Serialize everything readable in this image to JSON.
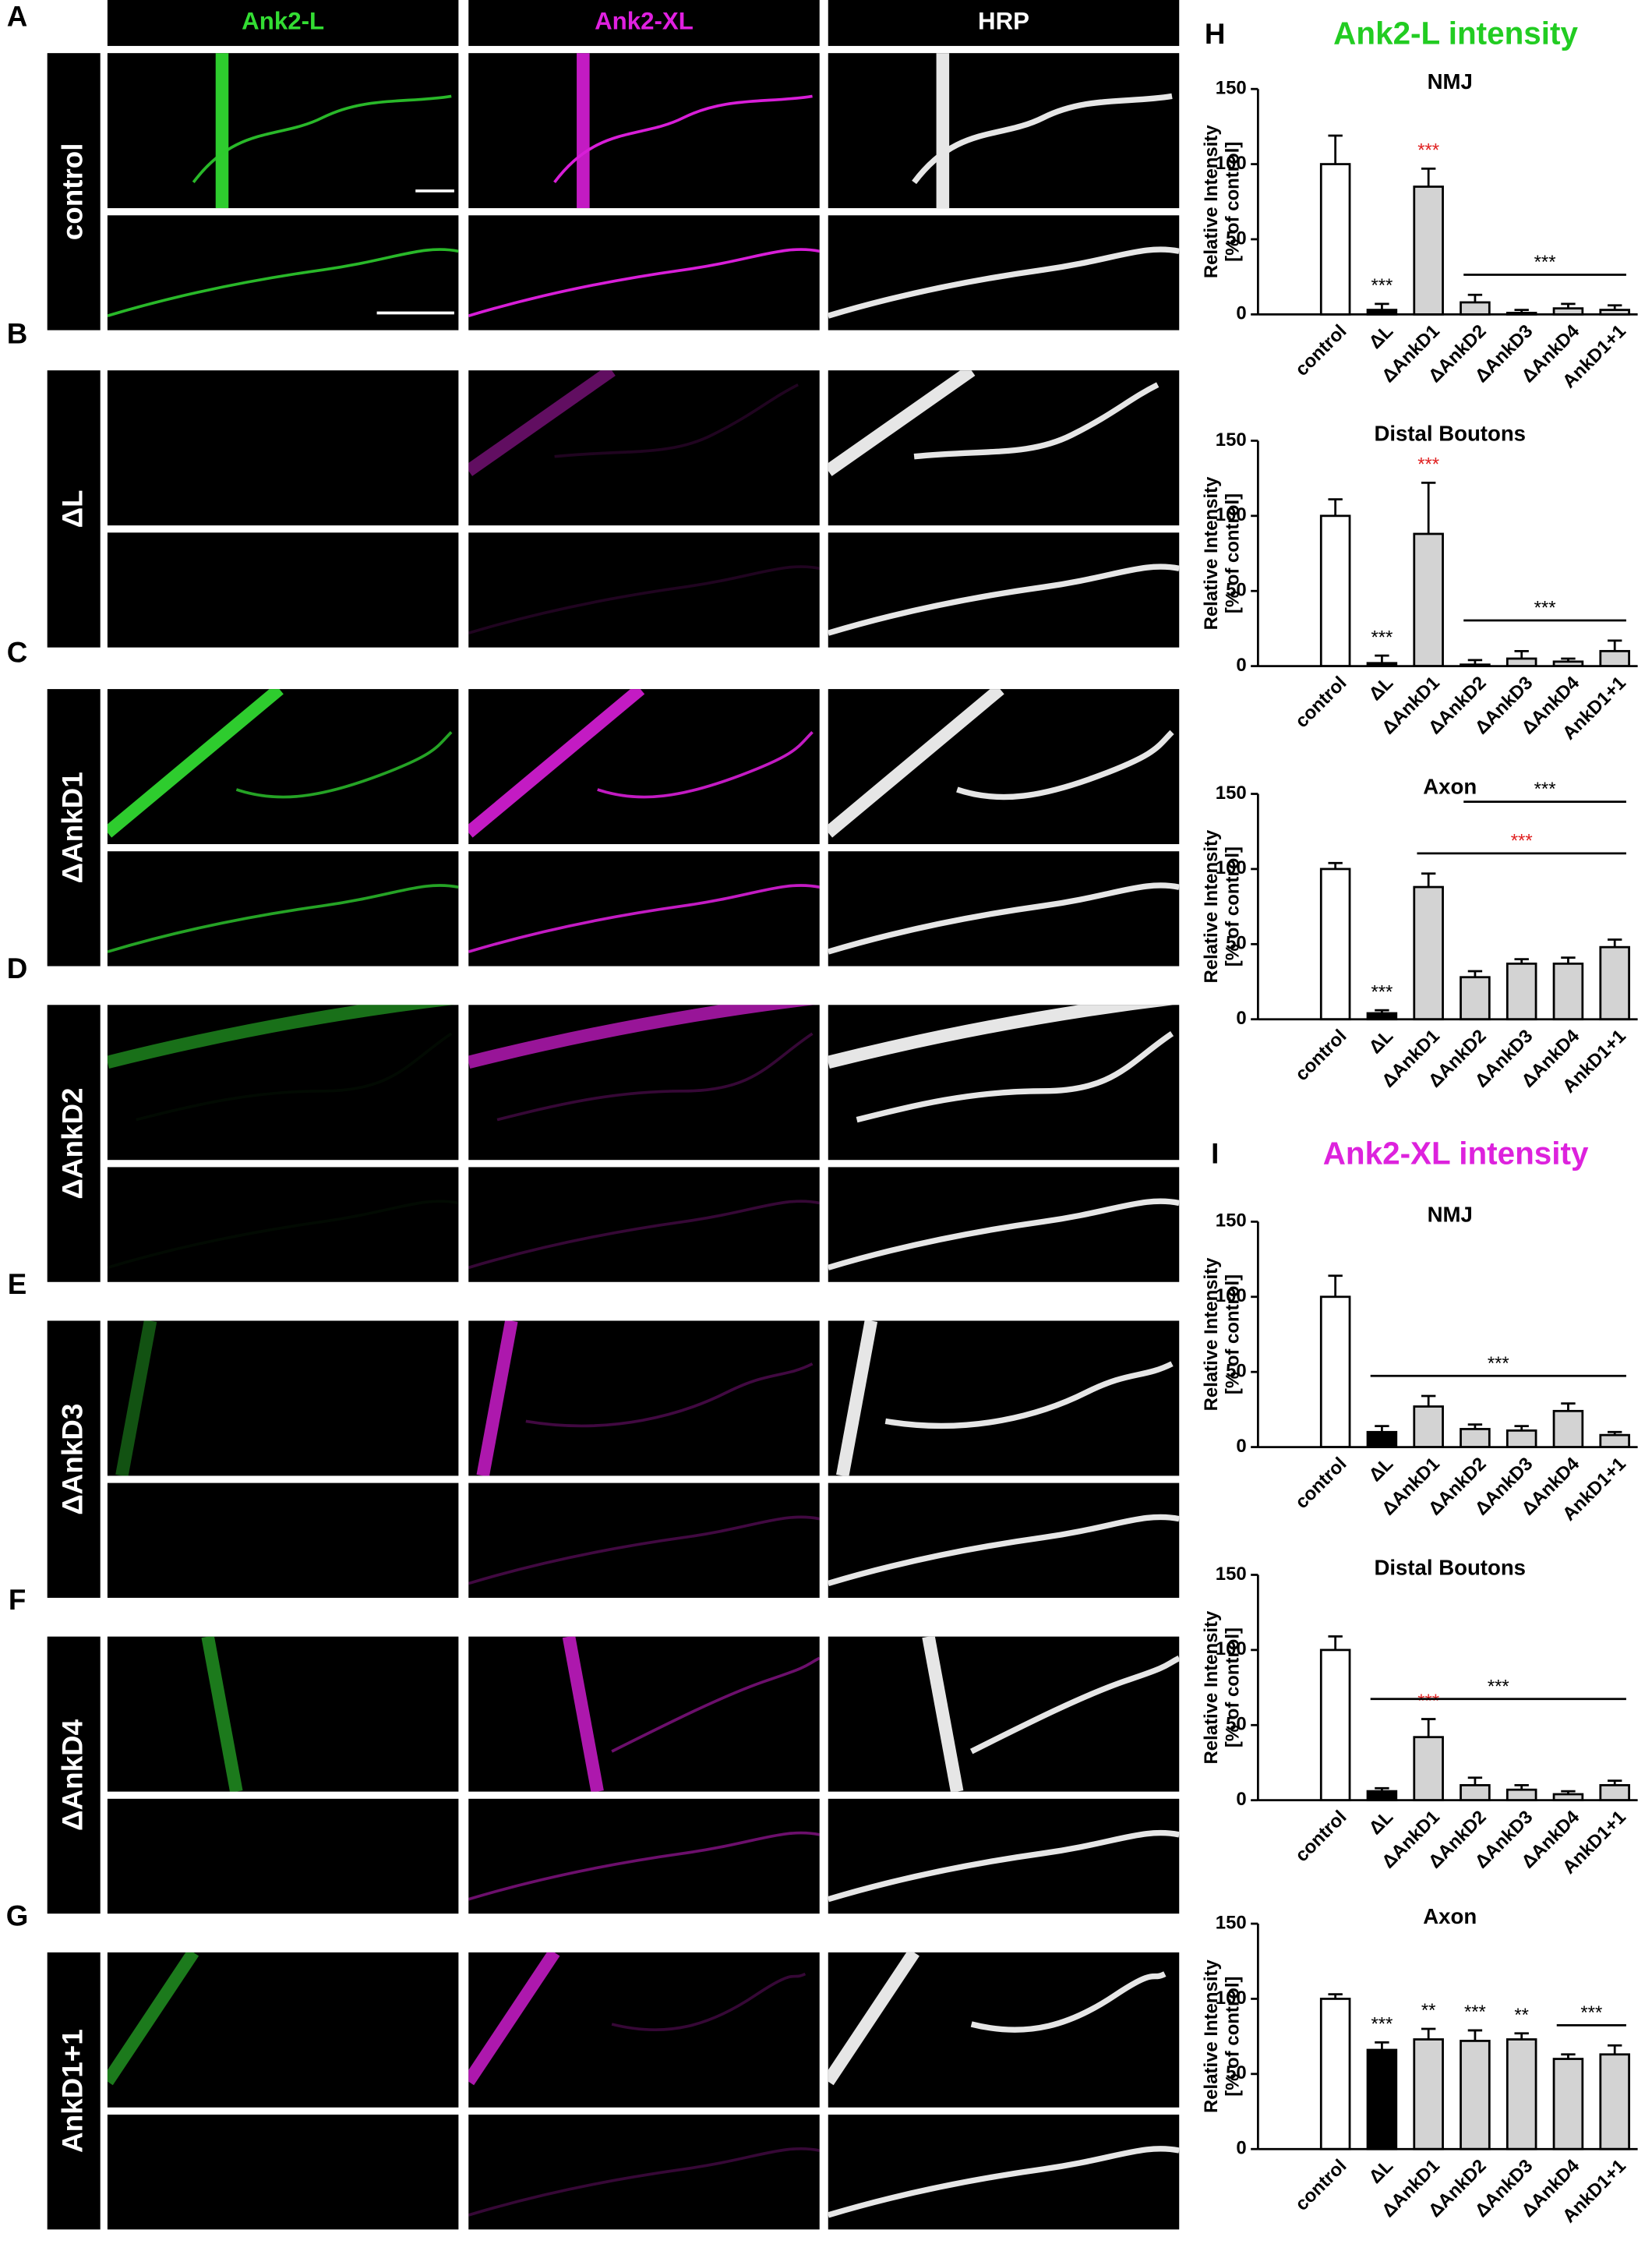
{
  "figure": {
    "column_headers": [
      {
        "text": "Ank2-L",
        "color": "#33dd33"
      },
      {
        "text": "Ank2-XL",
        "color": "#e020e0"
      },
      {
        "text": "HRP",
        "color": "#ffffff"
      }
    ],
    "rows": [
      {
        "letter": "A",
        "label": "control"
      },
      {
        "letter": "B",
        "label": "ΔL"
      },
      {
        "letter": "C",
        "label": "ΔAnkD1"
      },
      {
        "letter": "D",
        "label": "ΔAnkD2"
      },
      {
        "letter": "E",
        "label": "ΔAnkD3"
      },
      {
        "letter": "F",
        "label": "ΔAnkD4"
      },
      {
        "letter": "G",
        "label": "AnkD1+1"
      }
    ],
    "sections": [
      {
        "letter": "H",
        "title": "Ank2-L intensity",
        "color": "#22cc22"
      },
      {
        "letter": "I",
        "title": "Ank2-XL intensity",
        "color": "#dd22dd"
      }
    ]
  },
  "chart_data": [
    {
      "type": "bar",
      "title": "NMJ",
      "ylabel": [
        "Relative Intensity",
        "[% of control]"
      ],
      "categories": [
        "control",
        "ΔL",
        "ΔAnkD1",
        "ΔAnkD2",
        "ΔAnkD3",
        "ΔAnkD4",
        "AnkD1+1"
      ],
      "values": [
        100,
        3,
        85,
        8,
        1,
        4,
        3
      ],
      "errors": [
        19,
        4,
        12,
        5,
        2,
        3,
        3
      ],
      "bar_colors": [
        "#ffffff",
        "#000000",
        "#d3d3d3",
        "#d3d3d3",
        "#d3d3d3",
        "#d3d3d3",
        "#d3d3d3"
      ],
      "ylim": [
        0,
        150
      ],
      "yticks": [
        0,
        50,
        100,
        150
      ],
      "annotations": [
        {
          "text": "***",
          "color": "#000000",
          "span": [
            1,
            1
          ]
        },
        {
          "text": "***",
          "color": "#e02020",
          "span": [
            2,
            2
          ]
        },
        {
          "text": "***",
          "color": "#000000",
          "span": [
            3,
            6
          ]
        }
      ]
    },
    {
      "type": "bar",
      "title": "Distal Boutons",
      "ylabel": [
        "Relative Intensity",
        "[% of control]"
      ],
      "categories": [
        "control",
        "ΔL",
        "ΔAnkD1",
        "ΔAnkD2",
        "ΔAnkD3",
        "ΔAnkD4",
        "AnkD1+1"
      ],
      "values": [
        100,
        2,
        88,
        1,
        5,
        3,
        10
      ],
      "errors": [
        11,
        5,
        34,
        3,
        5,
        2,
        7
      ],
      "bar_colors": [
        "#ffffff",
        "#000000",
        "#d3d3d3",
        "#d3d3d3",
        "#d3d3d3",
        "#d3d3d3",
        "#d3d3d3"
      ],
      "ylim": [
        0,
        150
      ],
      "yticks": [
        0,
        50,
        100,
        150
      ],
      "annotations": [
        {
          "text": "***",
          "color": "#000000",
          "span": [
            1,
            1
          ]
        },
        {
          "text": "***",
          "color": "#e02020",
          "span": [
            2,
            2
          ]
        },
        {
          "text": "***",
          "color": "#000000",
          "span": [
            3,
            6
          ]
        }
      ]
    },
    {
      "type": "bar",
      "title": "Axon",
      "ylabel": [
        "Relative Intensity",
        "[% of control]"
      ],
      "categories": [
        "control",
        "ΔL",
        "ΔAnkD1",
        "ΔAnkD2",
        "ΔAnkD3",
        "ΔAnkD4",
        "AnkD1+1"
      ],
      "values": [
        100,
        4,
        88,
        28,
        37,
        37,
        48
      ],
      "errors": [
        4,
        2,
        9,
        4,
        3,
        4,
        5
      ],
      "bar_colors": [
        "#ffffff",
        "#000000",
        "#d3d3d3",
        "#d3d3d3",
        "#d3d3d3",
        "#d3d3d3",
        "#d3d3d3"
      ],
      "ylim": [
        0,
        150
      ],
      "yticks": [
        0,
        50,
        100,
        150
      ],
      "annotations": [
        {
          "text": "***",
          "color": "#000000",
          "span": [
            1,
            1
          ]
        },
        {
          "text": "***",
          "color": "#e02020",
          "span": [
            2,
            6
          ]
        },
        {
          "text": "***",
          "color": "#000000",
          "span": [
            3,
            6
          ]
        }
      ]
    },
    {
      "type": "bar",
      "title": "NMJ",
      "ylabel": [
        "Relative Intensity",
        "[% of control]"
      ],
      "categories": [
        "control",
        "ΔL",
        "ΔAnkD1",
        "ΔAnkD2",
        "ΔAnkD3",
        "ΔAnkD4",
        "AnkD1+1"
      ],
      "values": [
        100,
        10,
        27,
        12,
        11,
        24,
        8
      ],
      "errors": [
        14,
        4,
        7,
        3,
        3,
        5,
        2
      ],
      "bar_colors": [
        "#ffffff",
        "#000000",
        "#d3d3d3",
        "#d3d3d3",
        "#d3d3d3",
        "#d3d3d3",
        "#d3d3d3"
      ],
      "ylim": [
        0,
        150
      ],
      "yticks": [
        0,
        50,
        100,
        150
      ],
      "annotations": [
        {
          "text": "***",
          "color": "#000000",
          "span": [
            1,
            6
          ]
        }
      ]
    },
    {
      "type": "bar",
      "title": "Distal Boutons",
      "ylabel": [
        "Relative Intensity",
        "[% of control]"
      ],
      "categories": [
        "control",
        "ΔL",
        "ΔAnkD1",
        "ΔAnkD2",
        "ΔAnkD3",
        "ΔAnkD4",
        "AnkD1+1"
      ],
      "values": [
        100,
        6,
        42,
        10,
        7,
        4,
        10
      ],
      "errors": [
        9,
        2,
        12,
        5,
        3,
        2,
        3
      ],
      "bar_colors": [
        "#ffffff",
        "#000000",
        "#d3d3d3",
        "#d3d3d3",
        "#d3d3d3",
        "#d3d3d3",
        "#d3d3d3"
      ],
      "ylim": [
        0,
        150
      ],
      "yticks": [
        0,
        50,
        100,
        150
      ],
      "annotations": [
        {
          "text": "***",
          "color": "#e02020",
          "span": [
            2,
            2
          ]
        },
        {
          "text": "***",
          "color": "#000000",
          "span": [
            1,
            6
          ]
        }
      ]
    },
    {
      "type": "bar",
      "title": "Axon",
      "ylabel": [
        "Relative Intensity",
        "[% of control]"
      ],
      "categories": [
        "control",
        "ΔL",
        "ΔAnkD1",
        "ΔAnkD2",
        "ΔAnkD3",
        "ΔAnkD4",
        "AnkD1+1"
      ],
      "values": [
        100,
        66,
        73,
        72,
        73,
        60,
        63
      ],
      "errors": [
        3,
        5,
        7,
        7,
        4,
        3,
        6
      ],
      "bar_colors": [
        "#ffffff",
        "#000000",
        "#d3d3d3",
        "#d3d3d3",
        "#d3d3d3",
        "#d3d3d3",
        "#d3d3d3"
      ],
      "ylim": [
        0,
        150
      ],
      "yticks": [
        0,
        50,
        100,
        150
      ],
      "annotations": [
        {
          "text": "***",
          "color": "#000000",
          "span": [
            1,
            1
          ]
        },
        {
          "text": "**",
          "color": "#000000",
          "span": [
            2,
            2
          ]
        },
        {
          "text": "***",
          "color": "#000000",
          "span": [
            3,
            3
          ]
        },
        {
          "text": "**",
          "color": "#000000",
          "span": [
            4,
            4
          ]
        },
        {
          "text": "***",
          "color": "#000000",
          "span": [
            5,
            6
          ]
        }
      ]
    }
  ]
}
